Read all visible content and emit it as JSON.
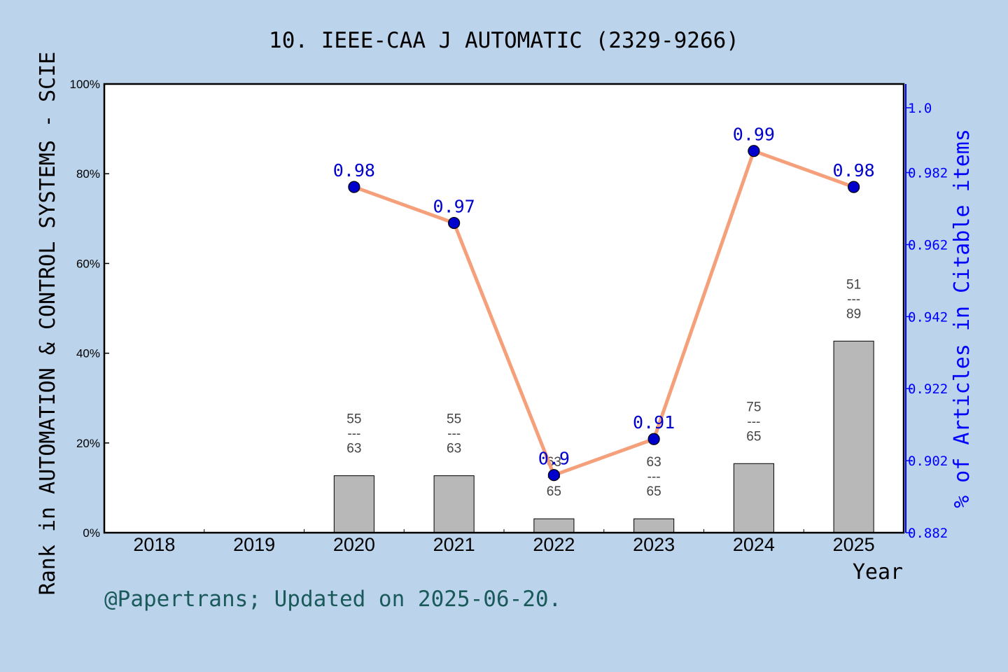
{
  "chart_data": {
    "type": "bar",
    "title": "10. IEEE-CAA J AUTOMATIC (2329-9266)",
    "xlabel": "Year",
    "ylabel": "Rank in AUTOMATION & CONTROL SYSTEMS - SCIE",
    "y2label": "% of Articles in Citable items",
    "footnote": "@Papertrans; Updated on 2025-06-20.",
    "categories": [
      "2018",
      "2019",
      "2020",
      "2021",
      "2022",
      "2023",
      "2024",
      "2025"
    ],
    "ylim": [
      0,
      100
    ],
    "yticks": [
      "0%",
      "20%",
      "40%",
      "60%",
      "80%",
      "100%"
    ],
    "y2lim": [
      0.882,
      1.0066
    ],
    "y2ticks": [
      "0.882",
      "0.902",
      "0.922",
      "0.942",
      "0.962",
      "0.982",
      "1.0"
    ],
    "grid": false,
    "series": [
      {
        "kind": "bar",
        "axis": "left",
        "values": [
          null,
          null,
          12.7,
          12.7,
          3.1,
          3.1,
          15.4,
          42.7
        ],
        "labels": [
          null,
          null,
          [
            "55",
            "---",
            "63"
          ],
          [
            "55",
            "---",
            "63"
          ],
          [
            "63",
            "---",
            "65"
          ],
          [
            "63",
            "---",
            "65"
          ],
          [
            "75",
            "---",
            "65"
          ],
          [
            "51",
            "---",
            "89"
          ]
        ]
      },
      {
        "kind": "line",
        "axis": "right",
        "values": [
          null,
          null,
          0.978,
          0.968,
          0.898,
          0.908,
          0.988,
          0.978
        ],
        "labels": [
          null,
          null,
          "0.98",
          "0.97",
          "0.9",
          "0.91",
          "0.99",
          "0.98"
        ]
      }
    ],
    "colors": {
      "background": "#bcd3ec",
      "plot": "#ffffff",
      "bar": "#b8b8b8",
      "line": "#f5a07a",
      "marker": "#0000cc",
      "right_axis": "#0000ff",
      "value_label": "#0000cc",
      "footnote": "#1a5a5a"
    }
  }
}
